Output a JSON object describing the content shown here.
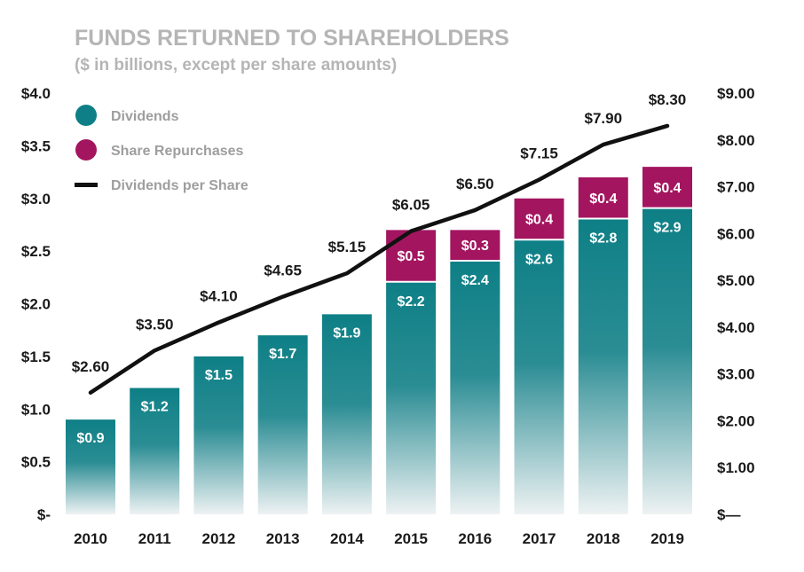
{
  "chart_data": {
    "type": "bar",
    "title": "FUNDS RETURNED TO SHAREHOLDERS",
    "subtitle": "($ in billions, except per share amounts)",
    "categories": [
      "2010",
      "2011",
      "2012",
      "2013",
      "2014",
      "2015",
      "2016",
      "2017",
      "2018",
      "2019"
    ],
    "series": [
      {
        "name": "Dividends",
        "kind": "stacked-bar",
        "axis": "left",
        "color": "#0e7f86",
        "values": [
          0.9,
          1.2,
          1.5,
          1.7,
          1.9,
          2.2,
          2.4,
          2.6,
          2.8,
          2.9
        ],
        "labels": [
          "$0.9",
          "$1.2",
          "$1.5",
          "$1.7",
          "$1.9",
          "$2.2",
          "$2.4",
          "$2.6",
          "$2.8",
          "$2.9"
        ]
      },
      {
        "name": "Share Repurchases",
        "kind": "stacked-bar",
        "axis": "left",
        "color": "#a3155f",
        "values": [
          null,
          null,
          null,
          null,
          null,
          0.5,
          0.3,
          0.4,
          0.4,
          0.4
        ],
        "labels": [
          "",
          "",
          "",
          "",
          "",
          "$0.5",
          "$0.3",
          "$0.4",
          "$0.4",
          "$0.4"
        ]
      },
      {
        "name": "Dividends per Share",
        "kind": "line",
        "axis": "right",
        "color": "#111111",
        "values": [
          2.6,
          3.5,
          4.1,
          4.65,
          5.15,
          6.05,
          6.5,
          7.15,
          7.9,
          8.3
        ],
        "labels": [
          "$2.60",
          "$3.50",
          "$4.10",
          "$4.65",
          "$5.15",
          "$6.05",
          "$6.50",
          "$7.15",
          "$7.90",
          "$8.30"
        ]
      }
    ],
    "left_axis": {
      "ylim": [
        0,
        4.0
      ],
      "ticks": [
        0,
        0.5,
        1.0,
        1.5,
        2.0,
        2.5,
        3.0,
        3.5,
        4.0
      ],
      "tick_labels": [
        "$-",
        "$0.5",
        "$1.0",
        "$1.5",
        "$2.0",
        "$2.5",
        "$3.0",
        "$3.5",
        "$4.0"
      ]
    },
    "right_axis": {
      "ylim": [
        0,
        9.0
      ],
      "ticks": [
        0,
        1,
        2,
        3,
        4,
        5,
        6,
        7,
        8,
        9
      ],
      "tick_labels": [
        "$—",
        "$1.00",
        "$2.00",
        "$3.00",
        "$4.00",
        "$5.00",
        "$6.00",
        "$7.00",
        "$8.00",
        "$9.00"
      ]
    },
    "legend_position": "top-left",
    "grid": false
  }
}
